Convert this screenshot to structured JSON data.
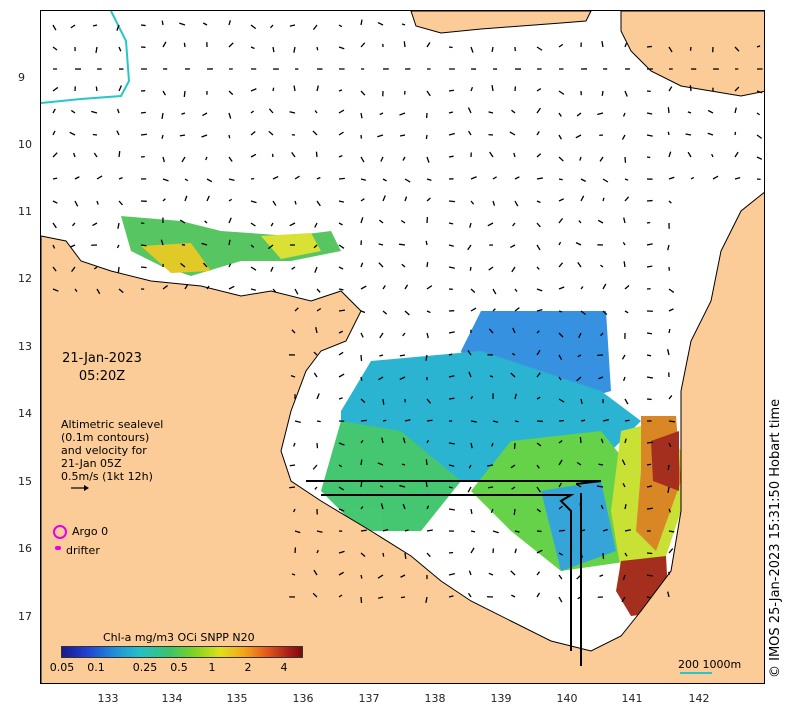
{
  "map": {
    "date": "21-Jan-2023",
    "time": "05:20Z",
    "legend_lines": [
      "Altimetric sealevel",
      "(0.1m contours)",
      "and velocity for",
      "21-Jan 05Z",
      "0.5m/s (1kt 12h)"
    ],
    "argo_label": "Argo 0",
    "drifter_label": "drifter",
    "colorbar_title": "Chl-a mg/m3 OCi SNPP N20",
    "colorbar_ticks": [
      "0.05",
      "0.1",
      "0.25",
      "0.5",
      "1",
      "2",
      "4"
    ],
    "scale_label": "200  1000m",
    "copyright": "© IMOS 25-Jan-2023 15:31:50 Hobart time",
    "lat_ticks": [
      "9",
      "10",
      "11",
      "12",
      "13",
      "14",
      "15",
      "16",
      "17"
    ],
    "lon_ticks": [
      "133",
      "134",
      "135",
      "136",
      "137",
      "138",
      "139",
      "140",
      "141",
      "142"
    ],
    "colors": {
      "land": "#fbcc97",
      "ocean": "#ffffff",
      "contour": "#27c7c7",
      "marker": "#e600e6"
    }
  }
}
